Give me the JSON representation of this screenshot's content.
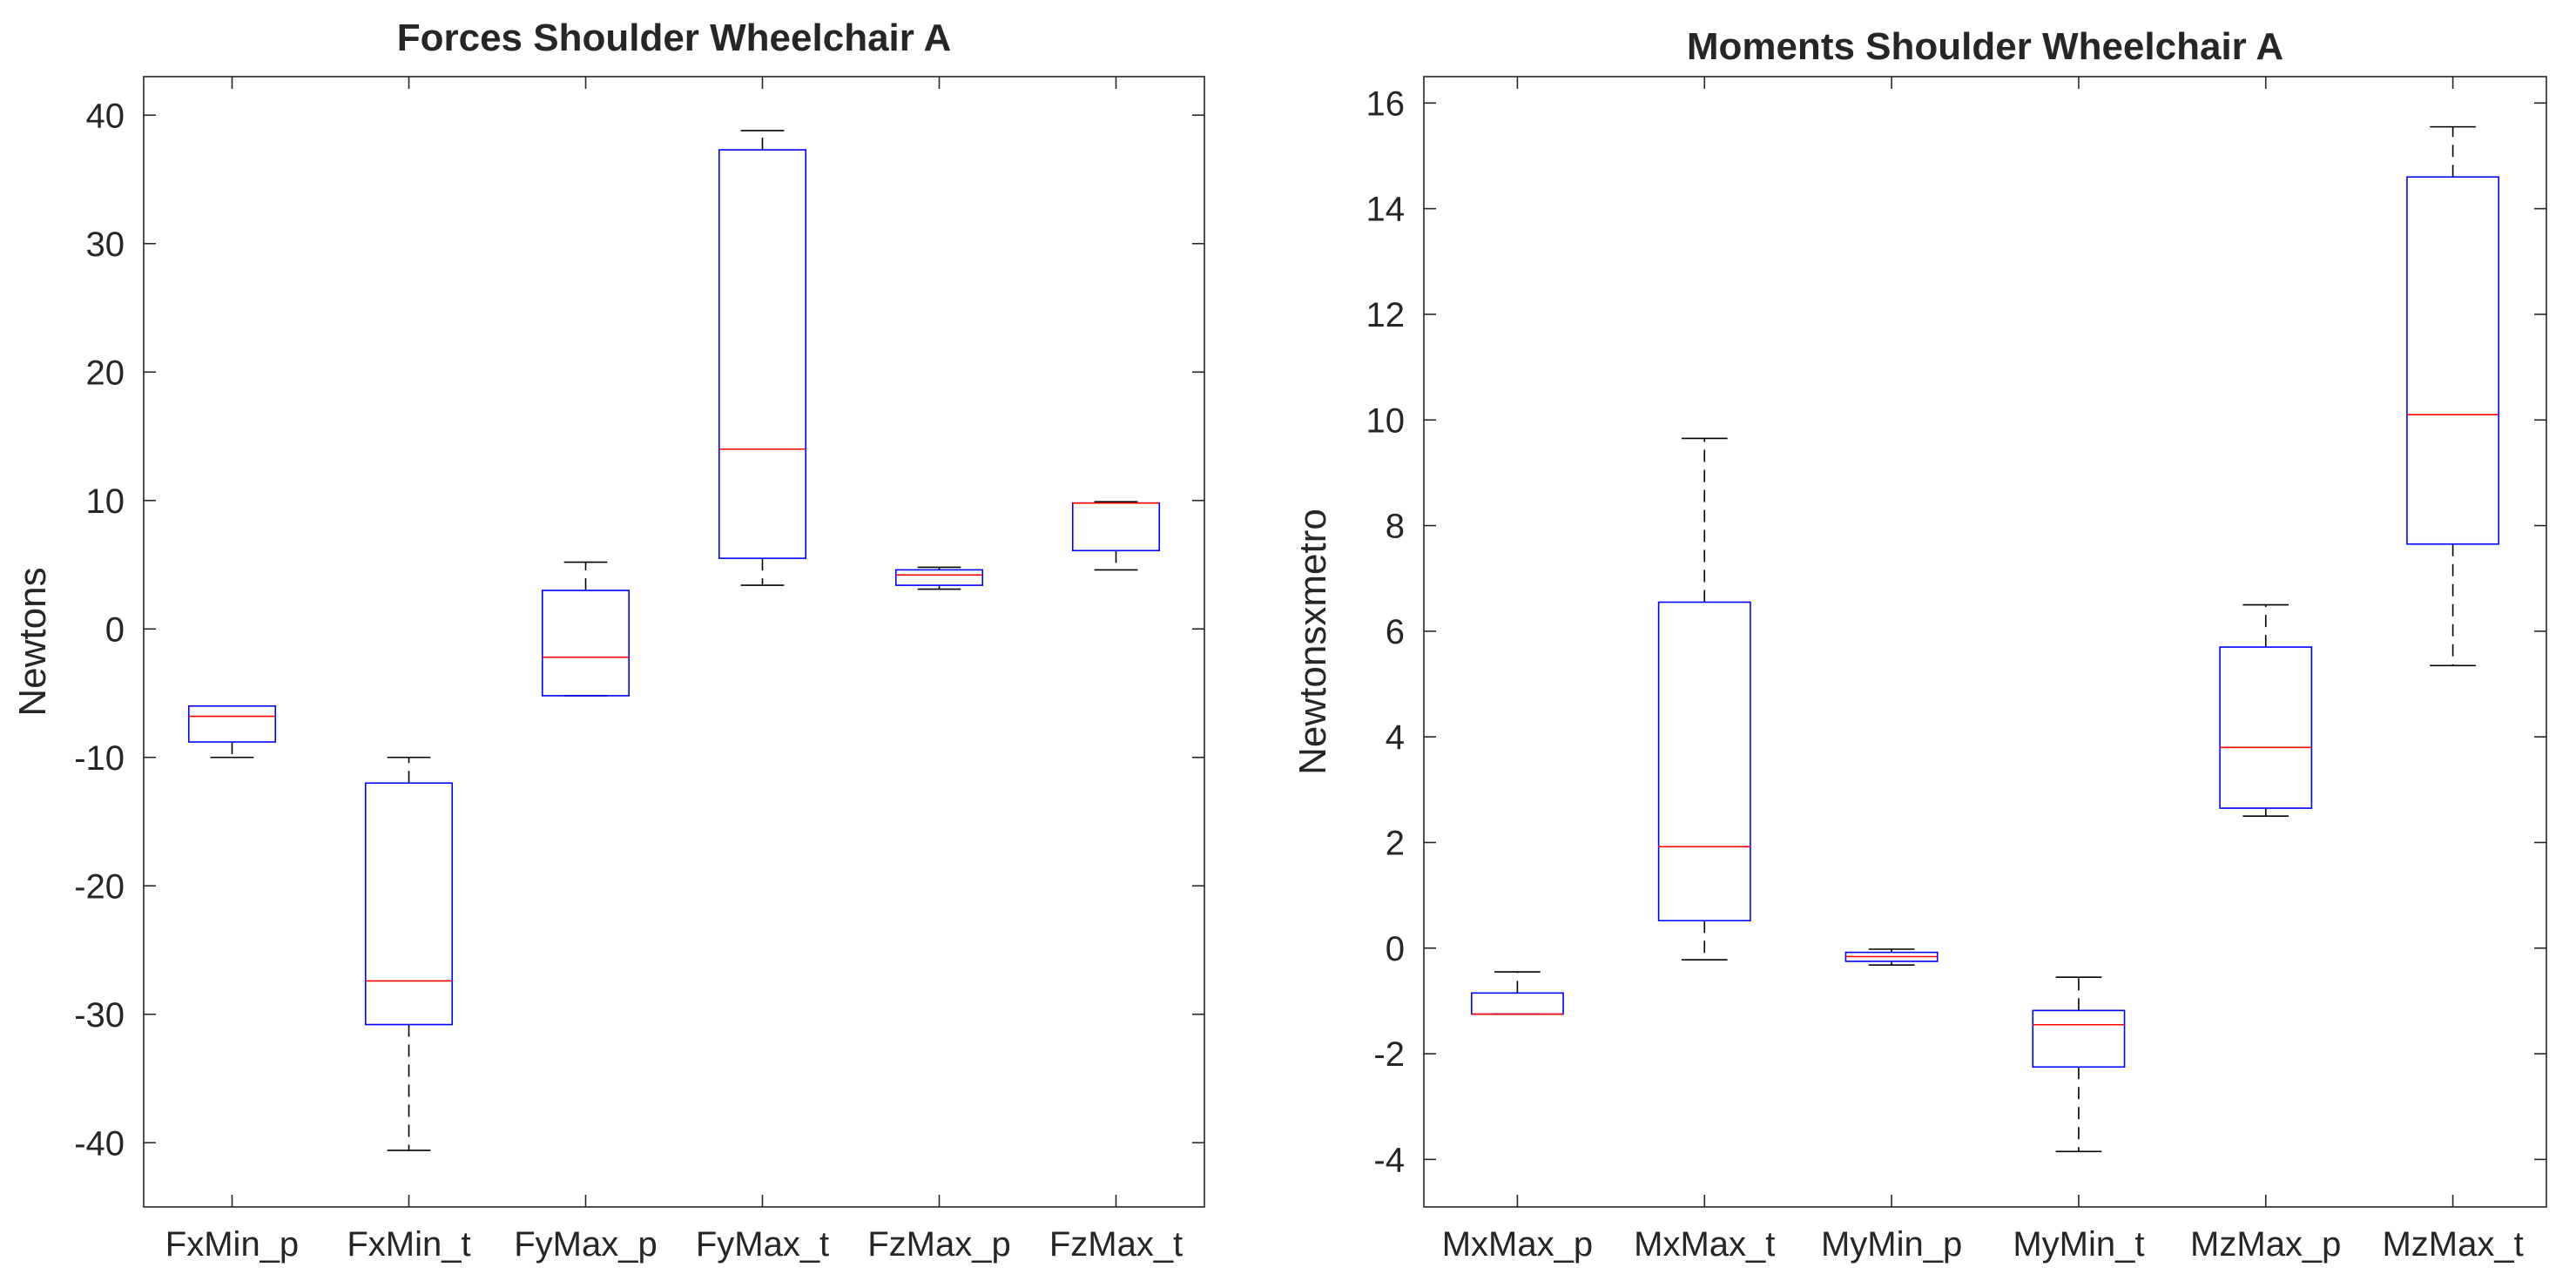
{
  "chart_data": [
    {
      "type": "box",
      "title": "Forces Shoulder Wheelchair A",
      "xlabel": "",
      "ylabel": "Newtons",
      "ylim": [
        -45,
        43
      ],
      "yticks": [
        -40,
        -30,
        -20,
        -10,
        0,
        10,
        20,
        30,
        40
      ],
      "categories": [
        "FxMin_p",
        "FxMin_t",
        "FyMax_p",
        "FyMax_t",
        "FzMax_p",
        "FzMax_t"
      ],
      "boxes": [
        {
          "whisker_low": -10.0,
          "q1": -8.8,
          "median": -6.8,
          "q3": -6.0,
          "whisker_high": -6.0
        },
        {
          "whisker_low": -40.6,
          "q1": -30.8,
          "median": -27.4,
          "q3": -12.0,
          "whisker_high": -10.0
        },
        {
          "whisker_low": -5.2,
          "q1": -5.2,
          "median": -2.2,
          "q3": 3.0,
          "whisker_high": 5.2
        },
        {
          "whisker_low": 3.4,
          "q1": 5.5,
          "median": 14.0,
          "q3": 37.3,
          "whisker_high": 38.8
        },
        {
          "whisker_low": 3.1,
          "q1": 3.4,
          "median": 4.2,
          "q3": 4.6,
          "whisker_high": 4.8
        },
        {
          "whisker_low": 4.6,
          "q1": 6.1,
          "median": 9.8,
          "q3": 9.8,
          "whisker_high": 9.9
        }
      ],
      "colors": {
        "box": "#0000ff",
        "median": "#ff0000",
        "whisker": "#000000"
      }
    },
    {
      "type": "box",
      "title": "Moments Shoulder Wheelchair A",
      "xlabel": "",
      "ylabel": "Newtonsxmetro",
      "ylim": [
        -4.9,
        16.5
      ],
      "yticks": [
        -4,
        -2,
        0,
        2,
        4,
        6,
        8,
        10,
        12,
        14,
        16
      ],
      "categories": [
        "MxMax_p",
        "MxMax_t",
        "MyMin_p",
        "MyMin_t",
        "MzMax_p",
        "MzMax_t"
      ],
      "boxes": [
        {
          "whisker_low": -1.25,
          "q1": -1.25,
          "median": -1.25,
          "q3": -0.85,
          "whisker_high": -0.45
        },
        {
          "whisker_low": -0.22,
          "q1": 0.52,
          "median": 1.92,
          "q3": 6.55,
          "whisker_high": 9.65
        },
        {
          "whisker_low": -0.32,
          "q1": -0.25,
          "median": -0.16,
          "q3": -0.08,
          "whisker_high": -0.02
        },
        {
          "whisker_low": -3.85,
          "q1": -2.25,
          "median": -1.45,
          "q3": -1.18,
          "whisker_high": -0.55
        },
        {
          "whisker_low": 2.5,
          "q1": 2.65,
          "median": 3.8,
          "q3": 5.7,
          "whisker_high": 6.5
        },
        {
          "whisker_low": 5.35,
          "q1": 7.65,
          "median": 10.1,
          "q3": 14.6,
          "whisker_high": 15.55
        }
      ],
      "colors": {
        "box": "#0000ff",
        "median": "#ff0000",
        "whisker": "#000000"
      }
    }
  ]
}
